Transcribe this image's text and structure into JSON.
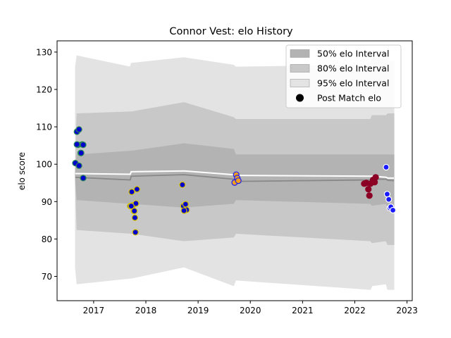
{
  "chart_data": {
    "type": "line",
    "title": "Connor Vest: elo History",
    "xlabel": "",
    "ylabel": "elo score",
    "xlim": [
      2016.3,
      2023.1
    ],
    "ylim": [
      63.5,
      133
    ],
    "grid": false,
    "legend_placement": "top-right",
    "x_ticks": [
      "2017",
      "2018",
      "2019",
      "2020",
      "2021",
      "2022",
      "2023"
    ],
    "y_ticks": [
      "70",
      "80",
      "90",
      "100",
      "110",
      "120",
      "130"
    ],
    "legend": [
      {
        "label": "50% elo Interval",
        "color": "#b3b3b3",
        "kind": "patch"
      },
      {
        "label": "80% elo Interval",
        "color": "#c8c8c8",
        "kind": "patch"
      },
      {
        "label": "95% elo Interval",
        "color": "#e3e3e3",
        "kind": "patch"
      },
      {
        "label": "Post Match elo",
        "color": "#000000",
        "kind": "marker"
      }
    ],
    "bands": {
      "x": [
        2016.65,
        2016.68,
        2017.7,
        2017.72,
        2018.73,
        2019.68,
        2019.72,
        2022.3,
        2022.33,
        2022.6,
        2022.63,
        2022.75
      ],
      "p50_low": [
        96.5,
        90.5,
        89.5,
        89.5,
        88.5,
        89.5,
        90.5,
        89.5,
        89.0,
        89.5,
        88.5,
        88.5
      ],
      "p50_high": [
        97.5,
        102.5,
        103.5,
        103.5,
        105.5,
        104.0,
        102.5,
        102.5,
        102.5,
        102.5,
        102.5,
        102.5
      ],
      "p80_low": [
        95.0,
        82.5,
        81.5,
        81.5,
        79.5,
        80.5,
        81.5,
        79.5,
        79.0,
        79.5,
        78.5,
        78.5
      ],
      "p80_high": [
        99.0,
        113.5,
        114.0,
        114.0,
        116.5,
        112.5,
        112.0,
        112.0,
        113.0,
        113.0,
        113.5,
        113.5
      ],
      "p95_low": [
        72.5,
        68.0,
        69.5,
        69.5,
        72.5,
        67.5,
        69.0,
        66.5,
        67.5,
        68.0,
        66.5,
        66.5
      ],
      "p95_high": [
        126.0,
        129.0,
        126.0,
        127.0,
        128.5,
        126.5,
        126.0,
        126.5,
        128.5,
        128.0,
        127.5,
        127.5
      ]
    },
    "mean_line": {
      "x": [
        2016.65,
        2017.7,
        2017.72,
        2018.73,
        2019.68,
        2019.72,
        2022.3,
        2022.33,
        2022.6,
        2022.63,
        2022.75
      ],
      "values": [
        96.5,
        95.8,
        96.8,
        97.2,
        96.0,
        95.4,
        95.8,
        96.0,
        96.0,
        95.7,
        95.6
      ]
    },
    "median_line": {
      "x": [
        2016.65,
        2017.7,
        2017.72,
        2018.73,
        2019.68,
        2019.72,
        2022.3,
        2022.33,
        2022.6,
        2022.63,
        2022.75
      ],
      "values": [
        97.5,
        97.3,
        98.0,
        98.2,
        97.2,
        97.0,
        96.8,
        96.8,
        96.5,
        96.3,
        96.3
      ]
    },
    "series": [
      {
        "fill": "#0000cc",
        "edge": "#2e8b57",
        "x": [
          2016.65,
          2016.68,
          2016.72,
          2016.75,
          2016.78,
          2016.7,
          2016.68,
          2016.8,
          2016.72,
          2016.76,
          2016.8
        ],
        "values": [
          100.3,
          108.7,
          109.3,
          103.0,
          105.3,
          105.2,
          105.3,
          96.3,
          99.6,
          103.0,
          105.2
        ]
      },
      {
        "fill": "#0000cc",
        "edge": "#d4c200",
        "x": [
          2017.7,
          2017.73,
          2017.75,
          2017.77,
          2017.79,
          2017.81,
          2017.83,
          2017.72,
          2017.8,
          2017.78
        ],
        "values": [
          88.8,
          92.6,
          89.0,
          87.5,
          85.7,
          89.5,
          93.3,
          88.8,
          81.8,
          87.5
        ],
        "note_labels": []
      },
      {
        "fill": "#0000cc",
        "edge": "#d4c200",
        "x": [
          2018.7,
          2018.72,
          2018.74,
          2018.76,
          2018.78,
          2018.73
        ],
        "values": [
          94.5,
          88.8,
          87.6,
          89.3,
          87.8,
          87.6
        ]
      },
      {
        "fill": "#f0a020",
        "edge": "#1a1aff",
        "x": [
          2019.7,
          2019.73,
          2019.75,
          2019.77
        ],
        "values": [
          95.1,
          97.2,
          96.3,
          95.6
        ]
      },
      {
        "fill": "#8b0024",
        "edge": "#8b0024",
        "x": [
          2022.18,
          2022.22,
          2022.26,
          2022.28,
          2022.3,
          2022.35,
          2022.38,
          2022.4
        ],
        "values": [
          94.8,
          95.0,
          93.3,
          91.6,
          94.8,
          95.8,
          95.2,
          96.5
        ]
      },
      {
        "fill": "#1a1aff",
        "edge": "#ffffff",
        "x": [
          2022.6,
          2022.62,
          2022.65,
          2022.67,
          2022.69,
          2022.73
        ],
        "values": [
          99.2,
          92.0,
          90.6,
          88.3,
          88.6,
          87.7
        ]
      }
    ]
  }
}
